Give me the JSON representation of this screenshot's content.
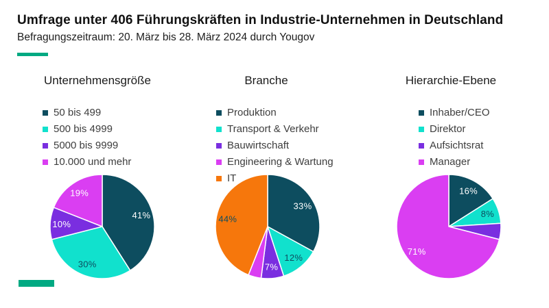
{
  "header": {
    "title": "Umfrage unter 406 Führungskräften in Industrie-Unternehmen in Deutschland",
    "subtitle": "Befragungszeitraum: 20. März bis 28. März 2024 durch Yougov"
  },
  "brand": {
    "logo_icon": "hpe-element-logo",
    "accent_color": "#01A982"
  },
  "palette": {
    "dark_teal": "#0D4D5F",
    "turquoise": "#11E1CD",
    "purple": "#7A2EE0",
    "magenta": "#DA3EF2",
    "orange": "#F6770C",
    "dark_label": "#0D4D5F",
    "light_label": "#FFFFFF"
  },
  "chart_data": [
    {
      "type": "pie",
      "title": "Unternehmensgröße",
      "unit": "%",
      "legend_position": "top-left",
      "segments": [
        {
          "label": "50 bis 499",
          "value": 41,
          "pct": "41%",
          "color": "#0D4D5F",
          "pct_color": "#FFFFFF"
        },
        {
          "label": "500 bis 4999",
          "value": 30,
          "pct": "30%",
          "color": "#11E1CD",
          "pct_color": "#0D4D5F"
        },
        {
          "label": "5000 bis 9999",
          "value": 10,
          "pct": "10%",
          "color": "#7A2EE0",
          "pct_color": "#FFFFFF"
        },
        {
          "label": "10.000 und mehr",
          "value": 19,
          "pct": "19%",
          "color": "#DA3EF2",
          "pct_color": "#FFFFFF"
        }
      ]
    },
    {
      "type": "pie",
      "title": "Branche",
      "unit": "%",
      "legend_position": "top-left",
      "segments": [
        {
          "label": "Produktion",
          "value": 33,
          "pct": "33%",
          "color": "#0D4D5F",
          "pct_color": "#FFFFFF"
        },
        {
          "label": "Transport & Verkehr",
          "value": 12,
          "pct": "12%",
          "color": "#11E1CD",
          "pct_color": "#0D4D5F"
        },
        {
          "label": "Bauwirtschaft",
          "value": 7,
          "pct": "7%",
          "color": "#7A2EE0",
          "pct_color": "#FFFFFF"
        },
        {
          "label": "Engineering & Wartung",
          "value": 4,
          "pct": "",
          "color": "#DA3EF2",
          "pct_color": "#FFFFFF"
        },
        {
          "label": "IT",
          "value": 44,
          "pct": "44%",
          "color": "#F6770C",
          "pct_color": "#0D4D5F"
        }
      ]
    },
    {
      "type": "pie",
      "title": "Hierarchie-Ebene",
      "unit": "%",
      "legend_position": "top-left",
      "segments": [
        {
          "label": "Inhaber/CEO",
          "value": 16,
          "pct": "16%",
          "color": "#0D4D5F",
          "pct_color": "#FFFFFF"
        },
        {
          "label": "Direktor",
          "value": 8,
          "pct": "8%",
          "color": "#11E1CD",
          "pct_color": "#0D4D5F"
        },
        {
          "label": "Aufsichtsrat",
          "value": 5,
          "pct": "",
          "color": "#7A2EE0",
          "pct_color": "#FFFFFF"
        },
        {
          "label": "Manager",
          "value": 71,
          "pct": "71%",
          "color": "#DA3EF2",
          "pct_color": "#FFFFFF"
        }
      ]
    }
  ]
}
